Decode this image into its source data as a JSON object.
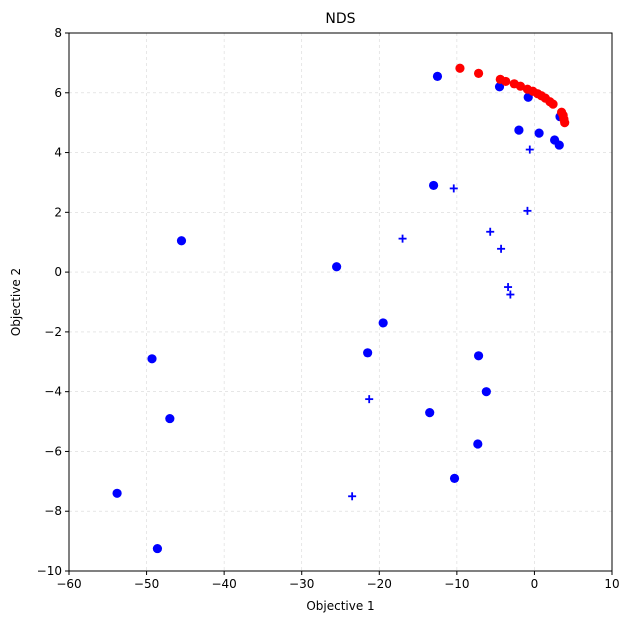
{
  "chart_data": {
    "type": "scatter",
    "title": "NDS",
    "xlabel": "Objective 1",
    "ylabel": "Objective 2",
    "xlim": [
      -60,
      10
    ],
    "ylim": [
      -10,
      8
    ],
    "xticks": [
      -60,
      -50,
      -40,
      -30,
      -20,
      -10,
      0,
      10
    ],
    "yticks": [
      -10,
      -8,
      -6,
      -4,
      -2,
      0,
      2,
      4,
      6,
      8
    ],
    "xtick_labels": [
      "−60",
      "−50",
      "−40",
      "−30",
      "−20",
      "−10",
      "0",
      "10"
    ],
    "ytick_labels": [
      "−10",
      "−8",
      "−6",
      "−4",
      "−2",
      "0",
      "2",
      "4",
      "6",
      "8"
    ],
    "grid": true,
    "series": [
      {
        "marker": "circle",
        "color": "#0000ff",
        "points": [
          [
            -12.5,
            6.55
          ],
          [
            -4.5,
            6.2
          ],
          [
            -0.8,
            5.85
          ],
          [
            3.3,
            5.2
          ],
          [
            -2.0,
            4.75
          ],
          [
            0.6,
            4.65
          ],
          [
            2.6,
            4.42
          ],
          [
            3.2,
            4.25
          ],
          [
            -13.0,
            2.9
          ],
          [
            -45.5,
            1.05
          ],
          [
            -25.5,
            0.18
          ],
          [
            -19.5,
            -1.7
          ],
          [
            -21.5,
            -2.7
          ],
          [
            -49.3,
            -2.9
          ],
          [
            -7.2,
            -2.8
          ],
          [
            -6.2,
            -4.0
          ],
          [
            -47.0,
            -4.9
          ],
          [
            -13.5,
            -4.7
          ],
          [
            -7.3,
            -5.75
          ],
          [
            -10.3,
            -6.9
          ],
          [
            -53.8,
            -7.4
          ],
          [
            -48.6,
            -9.25
          ]
        ]
      },
      {
        "marker": "plus",
        "color": "#0000ff",
        "points": [
          [
            -0.6,
            4.1
          ],
          [
            -10.4,
            2.8
          ],
          [
            -0.9,
            2.05
          ],
          [
            -5.7,
            1.35
          ],
          [
            -17.0,
            1.12
          ],
          [
            -4.3,
            0.78
          ],
          [
            -3.4,
            -0.5
          ],
          [
            -3.1,
            -0.75
          ],
          [
            -21.3,
            -4.25
          ],
          [
            -23.5,
            -7.5
          ]
        ]
      },
      {
        "marker": "circle",
        "color": "#ff0000",
        "points": [
          [
            -9.6,
            6.82
          ],
          [
            -7.2,
            6.65
          ],
          [
            -4.4,
            6.45
          ],
          [
            -3.7,
            6.38
          ],
          [
            -2.6,
            6.3
          ],
          [
            -1.8,
            6.22
          ],
          [
            -0.9,
            6.12
          ],
          [
            -0.2,
            6.05
          ],
          [
            0.4,
            5.97
          ],
          [
            0.9,
            5.9
          ],
          [
            1.4,
            5.82
          ],
          [
            2.0,
            5.7
          ],
          [
            2.4,
            5.62
          ],
          [
            3.5,
            5.35
          ],
          [
            3.7,
            5.25
          ],
          [
            3.8,
            5.12
          ],
          [
            3.9,
            5.0
          ]
        ]
      }
    ]
  }
}
